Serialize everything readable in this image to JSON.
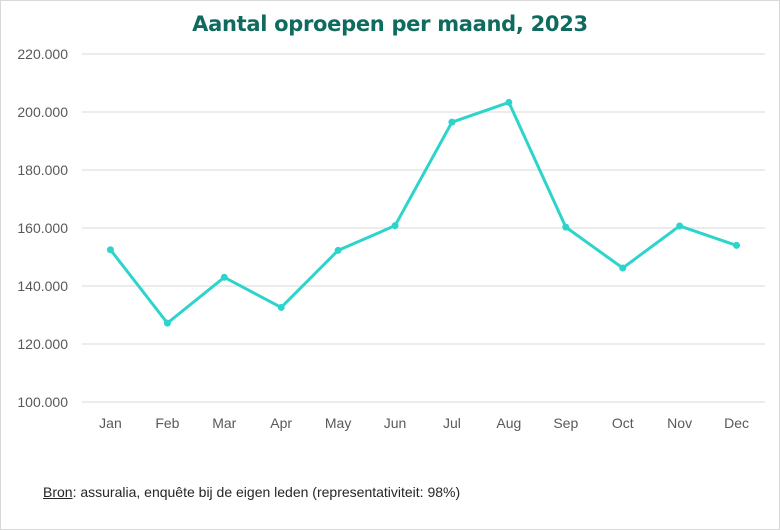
{
  "chart_data": {
    "type": "line",
    "title": "Aantal oproepen per maand, 2023",
    "xlabel": "",
    "ylabel": "",
    "categories": [
      "Jan",
      "Feb",
      "Mar",
      "Apr",
      "May",
      "Jun",
      "Jul",
      "Aug",
      "Sep",
      "Oct",
      "Nov",
      "Dec"
    ],
    "series": [
      {
        "values": [
          152500,
          127200,
          143000,
          132600,
          152300,
          160800,
          196500,
          203300,
          160300,
          146200,
          160700,
          154000
        ]
      }
    ],
    "ylim": [
      100000,
      220000
    ],
    "yticks": [
      100000,
      120000,
      140000,
      160000,
      180000,
      200000,
      220000
    ],
    "ytick_labels": [
      "100.000",
      "120.000",
      "140.000",
      "160.000",
      "180.000",
      "200.000",
      "220.000"
    ],
    "grid": true,
    "legend": "none",
    "line_color": "#2dd4cc"
  },
  "source": {
    "label": "Bron",
    "text": ": assuralia, enquête bij de eigen leden (representativiteit: 98%)"
  }
}
